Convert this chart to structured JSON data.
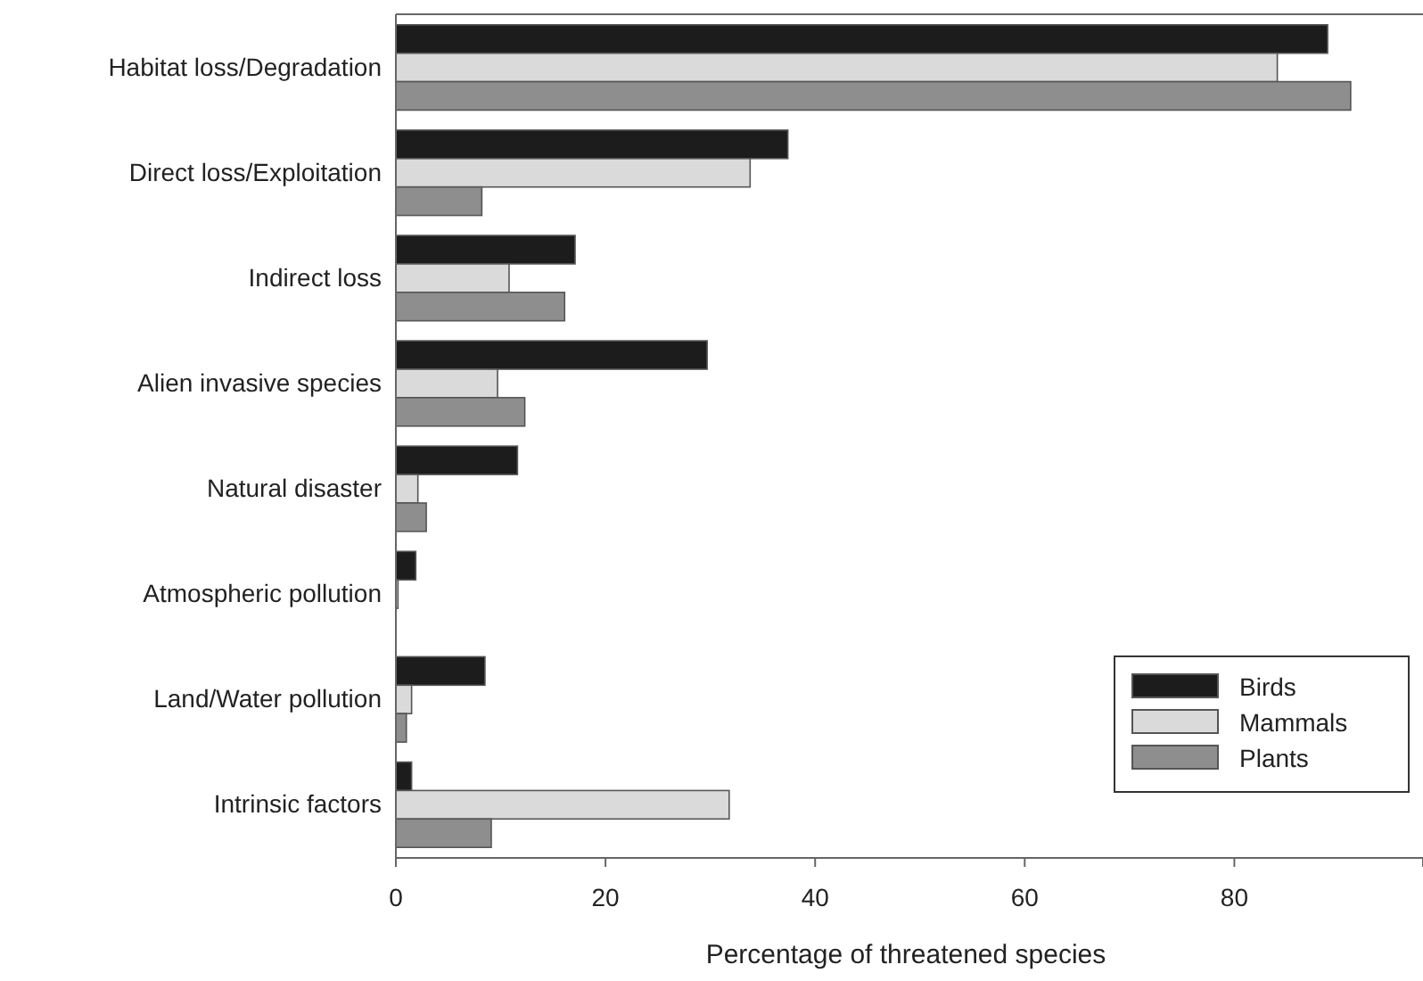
{
  "chart_data": {
    "type": "bar",
    "orientation": "horizontal",
    "xlabel": "Percentage of threatened species",
    "categories": [
      "Habitat loss/Degradation",
      "Direct loss/Exploitation",
      "Indirect loss",
      "Alien invasive species",
      "Natural disaster",
      "Atmospheric pollution",
      "Land/Water pollution",
      "Intrinsic factors"
    ],
    "series": [
      {
        "name": "Birds",
        "color": "#1c1c1c",
        "values": [
          88.9,
          37.4,
          17.1,
          29.7,
          11.6,
          1.9,
          8.5,
          1.5
        ]
      },
      {
        "name": "Mammals",
        "color": "#dadada",
        "values": [
          84.1,
          33.8,
          10.8,
          9.7,
          2.1,
          0.2,
          1.5,
          31.8
        ]
      },
      {
        "name": "Plants",
        "color": "#8e8e8e",
        "values": [
          91.1,
          8.2,
          16.1,
          12.3,
          2.9,
          0,
          1.0,
          9.1
        ]
      }
    ],
    "xlim": [
      0,
      98
    ],
    "xticks": [
      0,
      20,
      40,
      60,
      80
    ],
    "grid": false,
    "legend": "bottom right"
  }
}
